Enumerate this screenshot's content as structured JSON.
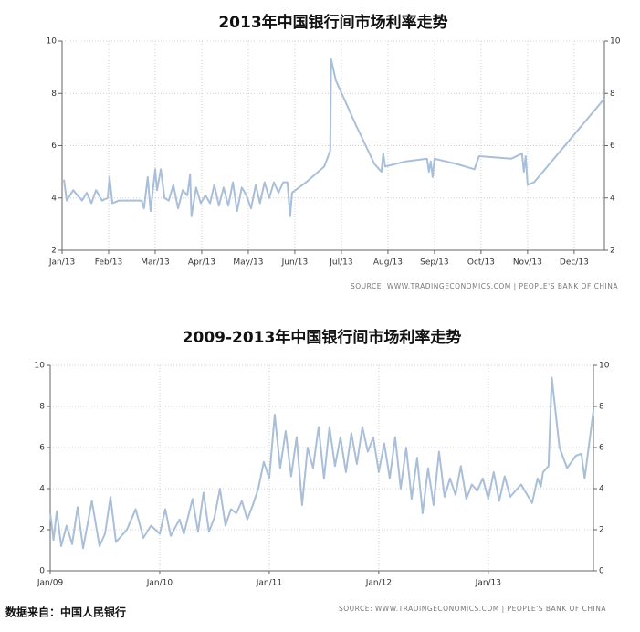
{
  "chart_data": [
    {
      "type": "line",
      "title": "2013年中国银行间市场利率走势",
      "source": "SOURCE: WWW.TRADINGECONOMICS.COM | PEOPLE'S BANK OF CHINA",
      "xlim": [
        0,
        11.65
      ],
      "xticks": [
        {
          "value": 0,
          "label": "Jan/13"
        },
        {
          "value": 1,
          "label": "Feb/13"
        },
        {
          "value": 2,
          "label": "Mar/13"
        },
        {
          "value": 3,
          "label": "Apr/13"
        },
        {
          "value": 4,
          "label": "May/13"
        },
        {
          "value": 5,
          "label": "Jun/13"
        },
        {
          "value": 6,
          "label": "Jul/13"
        },
        {
          "value": 7,
          "label": "Aug/13"
        },
        {
          "value": 8,
          "label": "Sep/13"
        },
        {
          "value": 9,
          "label": "Oct/13"
        },
        {
          "value": 10,
          "label": "Nov/13"
        },
        {
          "value": 11,
          "label": "Dec/13"
        }
      ],
      "ylim": [
        2,
        10
      ],
      "yticks": [
        2,
        4,
        6,
        8,
        10
      ],
      "grid": true,
      "x": [
        0.04,
        0.1,
        0.24,
        0.33,
        0.43,
        0.53,
        0.63,
        0.73,
        0.86,
        0.98,
        1.02,
        1.08,
        1.22,
        1.61,
        1.71,
        1.76,
        1.84,
        1.9,
        2.0,
        2.04,
        2.12,
        2.2,
        2.29,
        2.39,
        2.49,
        2.59,
        2.69,
        2.75,
        2.78,
        2.88,
        2.98,
        3.08,
        3.18,
        3.27,
        3.37,
        3.47,
        3.57,
        3.67,
        3.76,
        3.86,
        3.96,
        4.06,
        4.16,
        4.25,
        4.35,
        4.45,
        4.55,
        4.65,
        4.75,
        4.84,
        4.9,
        4.94,
        5.24,
        5.63,
        5.76,
        5.78,
        5.88,
        6.31,
        6.71,
        6.86,
        6.9,
        6.94,
        7.39,
        7.84,
        7.88,
        7.92,
        7.96,
        8.0,
        8.47,
        8.86,
        8.96,
        9.65,
        9.88,
        9.92,
        9.96,
        10.0,
        10.14,
        11.65
      ],
      "series": [
        {
          "color": "#a9bfd9",
          "values": [
            4.7,
            3.9,
            4.3,
            4.1,
            3.9,
            4.2,
            3.8,
            4.3,
            3.9,
            4.0,
            4.8,
            3.8,
            3.9,
            3.9,
            3.9,
            3.6,
            4.8,
            3.5,
            5.1,
            4.3,
            5.1,
            4.0,
            3.9,
            4.5,
            3.6,
            4.3,
            4.1,
            4.9,
            3.3,
            4.4,
            3.8,
            4.1,
            3.8,
            4.5,
            3.7,
            4.4,
            3.7,
            4.6,
            3.5,
            4.4,
            4.1,
            3.6,
            4.5,
            3.8,
            4.6,
            4.0,
            4.6,
            4.2,
            4.6,
            4.6,
            3.3,
            4.2,
            4.6,
            5.2,
            5.8,
            9.3,
            8.5,
            6.8,
            5.3,
            5.0,
            5.7,
            5.2,
            5.4,
            5.5,
            5.0,
            5.4,
            4.8,
            5.5,
            5.3,
            5.1,
            5.6,
            5.5,
            5.7,
            5.0,
            5.6,
            4.5,
            4.6,
            7.8
          ]
        }
      ]
    },
    {
      "type": "line",
      "title": "2009-2013年中国银行间市场利率走势",
      "source": "SOURCE: WWW.TRADINGECONOMICS.COM | PEOPLE'S BANK OF CHINA",
      "xlim": [
        2009,
        2013.96
      ],
      "xticks": [
        {
          "value": 2009,
          "label": "Jan/09"
        },
        {
          "value": 2010,
          "label": "Jan/10"
        },
        {
          "value": 2011,
          "label": "Jan/11"
        },
        {
          "value": 2012,
          "label": "Jan/12"
        },
        {
          "value": 2013,
          "label": "Jan/13"
        }
      ],
      "ylim": [
        0,
        10
      ],
      "yticks": [
        0,
        2,
        4,
        6,
        8,
        10
      ],
      "grid": true,
      "x": [
        2009.0,
        2009.03,
        2009.06,
        2009.1,
        2009.15,
        2009.2,
        2009.25,
        2009.3,
        2009.38,
        2009.45,
        2009.5,
        2009.55,
        2009.6,
        2009.7,
        2009.78,
        2009.85,
        2009.92,
        2010.0,
        2010.05,
        2010.1,
        2010.18,
        2010.22,
        2010.3,
        2010.35,
        2010.4,
        2010.45,
        2010.5,
        2010.55,
        2010.6,
        2010.65,
        2010.7,
        2010.75,
        2010.8,
        2010.85,
        2010.9,
        2010.95,
        2011.0,
        2011.05,
        2011.1,
        2011.15,
        2011.2,
        2011.25,
        2011.3,
        2011.35,
        2011.4,
        2011.45,
        2011.5,
        2011.55,
        2011.6,
        2011.65,
        2011.7,
        2011.75,
        2011.8,
        2011.85,
        2011.9,
        2011.95,
        2012.0,
        2012.05,
        2012.1,
        2012.15,
        2012.2,
        2012.25,
        2012.3,
        2012.35,
        2012.4,
        2012.45,
        2012.5,
        2012.55,
        2012.6,
        2012.65,
        2012.7,
        2012.75,
        2012.8,
        2012.85,
        2012.9,
        2012.95,
        2013.0,
        2013.05,
        2013.1,
        2013.15,
        2013.2,
        2013.3,
        2013.4,
        2013.45,
        2013.48,
        2013.5,
        2013.55,
        2013.58,
        2013.65,
        2013.72,
        2013.8,
        2013.85,
        2013.88,
        2013.96
      ],
      "series": [
        {
          "color": "#a9bfd9",
          "values": [
            2.8,
            1.5,
            2.9,
            1.2,
            2.2,
            1.3,
            3.1,
            1.1,
            3.4,
            1.2,
            1.8,
            3.6,
            1.4,
            2.0,
            3.0,
            1.6,
            2.2,
            1.8,
            3.0,
            1.7,
            2.5,
            1.8,
            3.5,
            1.9,
            3.8,
            1.9,
            2.6,
            4.0,
            2.2,
            3.0,
            2.8,
            3.4,
            2.5,
            3.2,
            4.0,
            5.3,
            4.5,
            7.6,
            5.0,
            6.8,
            4.6,
            6.5,
            3.2,
            6.0,
            5.0,
            7.0,
            4.5,
            7.0,
            5.1,
            6.5,
            4.8,
            6.7,
            5.2,
            7.0,
            5.8,
            6.5,
            4.8,
            6.2,
            4.5,
            6.5,
            4.0,
            6.0,
            3.5,
            5.5,
            2.8,
            5.0,
            3.2,
            5.8,
            3.6,
            4.5,
            3.7,
            5.1,
            3.5,
            4.2,
            3.9,
            4.5,
            3.5,
            4.8,
            3.4,
            4.6,
            3.6,
            4.2,
            3.3,
            4.5,
            4.1,
            4.8,
            5.1,
            9.4,
            6.0,
            5.0,
            5.6,
            5.7,
            4.5,
            7.8
          ]
        }
      ]
    }
  ],
  "footer": "数据来自：中国人民银行"
}
